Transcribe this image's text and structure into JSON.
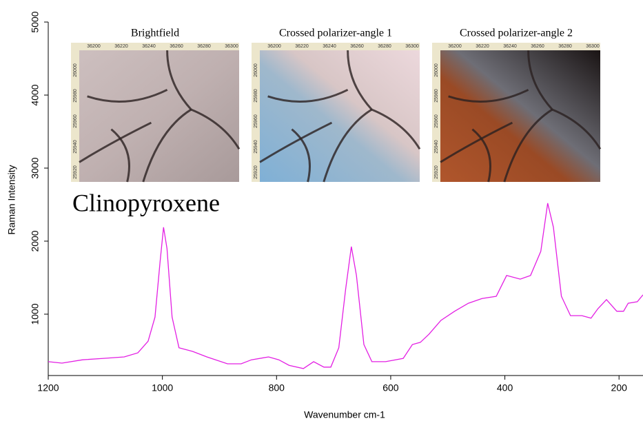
{
  "chart_data": {
    "type": "line",
    "annotation": "Clinopyroxene",
    "x_label": "Wavenumber cm-1",
    "y_label": "Raman Intensity",
    "color": "#e31ee3",
    "xlim": [
      1200,
      158
    ],
    "ylim": [
      160,
      5000
    ],
    "xticks": [
      1200,
      1000,
      800,
      600,
      400,
      200
    ],
    "yticks": [
      1000,
      2000,
      3000,
      4000,
      5000
    ],
    "x": [
      1200,
      1176,
      1140,
      1103,
      1067,
      1043,
      1025,
      1013,
      1004,
      998,
      992,
      983,
      971,
      947,
      922,
      886,
      862,
      844,
      814,
      796,
      778,
      753,
      735,
      717,
      705,
      691,
      679,
      669,
      660,
      647,
      633,
      609,
      578,
      562,
      548,
      533,
      512,
      488,
      464,
      440,
      415,
      397,
      373,
      355,
      337,
      325,
      315,
      301,
      285,
      265,
      249,
      237,
      222,
      204,
      192,
      184,
      168,
      158
    ],
    "values": [
      350,
      330,
      375,
      395,
      415,
      470,
      630,
      960,
      1720,
      2190,
      1900,
      960,
      540,
      490,
      415,
      320,
      320,
      375,
      415,
      375,
      300,
      255,
      350,
      275,
      275,
      540,
      1340,
      1925,
      1530,
      585,
      350,
      350,
      395,
      585,
      615,
      725,
      915,
      1040,
      1150,
      1215,
      1245,
      1530,
      1480,
      1530,
      1860,
      2520,
      2190,
      1245,
      980,
      980,
      945,
      1075,
      1200,
      1040,
      1040,
      1150,
      1170,
      1265
    ],
    "insets": [
      {
        "title": "Brightfield",
        "xticks": [
          "36200",
          "36220",
          "36240",
          "36260",
          "36280",
          "36300"
        ],
        "yticks": [
          "26000",
          "25980",
          "25960",
          "25940",
          "25920"
        ]
      },
      {
        "title": "Crossed polarizer-angle 1",
        "xticks": [
          "36200",
          "36220",
          "36240",
          "36260",
          "36280",
          "36300"
        ],
        "yticks": [
          "26000",
          "25980",
          "25960",
          "25940",
          "25920"
        ]
      },
      {
        "title": "Crossed polarizer-angle 2",
        "xticks": [
          "36200",
          "36220",
          "36240",
          "36260",
          "36280",
          "36300"
        ],
        "yticks": [
          "26000",
          "25980",
          "25960",
          "25940",
          "25920"
        ]
      }
    ]
  }
}
